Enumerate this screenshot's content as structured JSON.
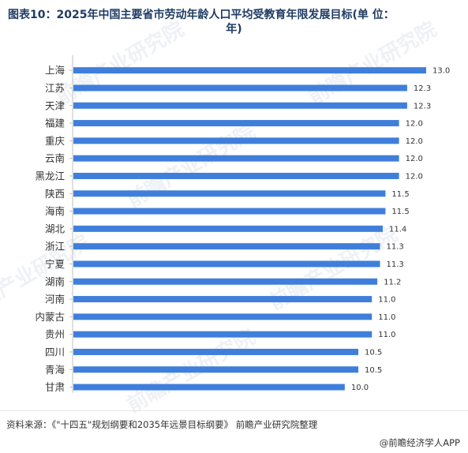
{
  "title_line1": "图表10：2025年中国主要省市劳动年龄人口平均受教育年限发展目标(单 位：",
  "title_line2": "年)",
  "source": "资料来源：《\"十四五\"规划纲要和2035年远景目标纲要》 前瞻产业研究院整理",
  "footer": "@前瞻经济学人APP",
  "colors": {
    "bar": "#3f7fdb",
    "title": "#1f3b63"
  },
  "chart_data": {
    "type": "bar",
    "orientation": "horizontal",
    "categories": [
      "上海",
      "江苏",
      "天津",
      "福建",
      "重庆",
      "云南",
      "黑龙江",
      "陕西",
      "海南",
      "湖北",
      "浙江",
      "宁夏",
      "湖南",
      "河南",
      "内蒙古",
      "贵州",
      "四川",
      "青海",
      "甘肃"
    ],
    "values": [
      13.0,
      12.3,
      12.3,
      12.0,
      12.0,
      12.0,
      12.0,
      11.5,
      11.5,
      11.4,
      11.3,
      11.3,
      11.2,
      11.0,
      11.0,
      11.0,
      10.5,
      10.5,
      10.0
    ],
    "data_labels": [
      "13.0",
      "12.3",
      "12.3",
      "12.0",
      "12.0",
      "12.0",
      "12.0",
      "11.5",
      "11.5",
      "11.4",
      "11.3",
      "11.3",
      "11.2",
      "11.0",
      "11.0",
      "11.0",
      "10.5",
      "10.5",
      "10.0"
    ],
    "xlim": [
      0,
      13.0
    ],
    "grid": false,
    "legend": false
  }
}
